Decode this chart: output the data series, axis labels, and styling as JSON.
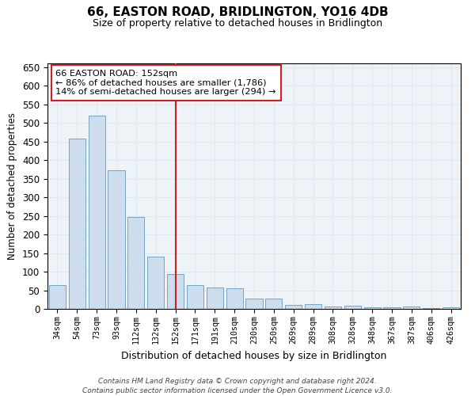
{
  "title": "66, EASTON ROAD, BRIDLINGTON, YO16 4DB",
  "subtitle": "Size of property relative to detached houses in Bridlington",
  "xlabel": "Distribution of detached houses by size in Bridlington",
  "ylabel": "Number of detached properties",
  "bar_labels": [
    "34sqm",
    "54sqm",
    "73sqm",
    "93sqm",
    "112sqm",
    "132sqm",
    "152sqm",
    "171sqm",
    "191sqm",
    "210sqm",
    "230sqm",
    "250sqm",
    "269sqm",
    "289sqm",
    "308sqm",
    "328sqm",
    "348sqm",
    "367sqm",
    "387sqm",
    "406sqm",
    "426sqm"
  ],
  "bar_values": [
    63,
    458,
    520,
    372,
    248,
    141,
    93,
    63,
    58,
    55,
    27,
    27,
    10,
    12,
    7,
    8,
    5,
    4,
    6,
    3,
    4
  ],
  "bar_color": "#ccdded",
  "bar_edge_color": "#6699bb",
  "grid_color": "#dde8f0",
  "background_color": "#eef3f8",
  "vline_x_index": 6,
  "vline_color": "#cc2222",
  "annotation_text": "66 EASTON ROAD: 152sqm\n← 86% of detached houses are smaller (1,786)\n14% of semi-detached houses are larger (294) →",
  "annotation_box_color": "#ffffff",
  "annotation_box_edge": "#cc2222",
  "footnote_line1": "Contains HM Land Registry data © Crown copyright and database right 2024.",
  "footnote_line2": "Contains public sector information licensed under the Open Government Licence v3.0.",
  "ylim": [
    0,
    660
  ],
  "yticks": [
    0,
    50,
    100,
    150,
    200,
    250,
    300,
    350,
    400,
    450,
    500,
    550,
    600,
    650
  ]
}
